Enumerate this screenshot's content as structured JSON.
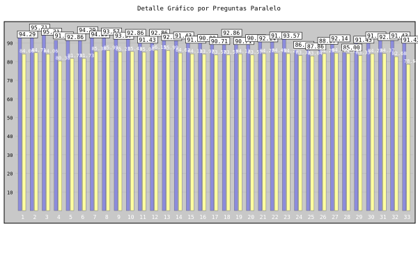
{
  "title": "Detalle Gráfico por Preguntas Paralelo",
  "colors": {
    "plot_bg": "#c8c8c8",
    "series_blue": "#8c8cdc",
    "series_yellow": "#ffffa0",
    "grid": "#bdbdbd",
    "label_box_bg": "#ffffff"
  },
  "chart_data": {
    "type": "bar",
    "title": "Detalle Gráfico por Preguntas Paralelo",
    "xlabel": "",
    "ylabel": "",
    "ylim": [
      0,
      100
    ],
    "yticks": [
      10,
      20,
      30,
      40,
      50,
      60,
      70,
      80,
      90
    ],
    "grid": true,
    "categories": [
      "1",
      "2",
      "3",
      "4",
      "5",
      "6",
      "7",
      "8",
      "9",
      "10",
      "11",
      "12",
      "13",
      "14",
      "15",
      "16",
      "17",
      "18",
      "19",
      "20",
      "21",
      "22",
      "23",
      "24",
      "25",
      "26",
      "27",
      "28",
      "29",
      "30",
      "31",
      "32",
      "33"
    ],
    "series": [
      {
        "color": "#8c8cdc",
        "values": [
          94.29,
          95.71,
          95.71,
          91.43,
          92.86,
          94.29,
          94.29,
          93.57,
          93.57,
          92.86,
          91.43,
          92.86,
          92.86,
          91.43,
          91.43,
          90.0,
          90.71,
          92.86,
          90.71,
          90.0,
          92.14,
          91.43,
          93.57,
          86.43,
          87.86,
          88.57,
          92.14,
          85.0,
          91.43,
          91.43,
          92.86,
          91.43,
          91.43
        ]
      },
      {
        "color": "#ffffa0",
        "values": [
          84.06,
          84.71,
          84.06,
          80.38,
          81.73,
          81.73,
          85.38,
          85.99,
          85.21,
          85.43,
          85.04,
          86.15,
          85.99,
          84.62,
          84.13,
          83.97,
          83.57,
          83.57,
          84.13,
          83.57,
          84.27,
          84.49,
          84.29,
          83.33,
          83.04,
          84.29,
          84.58,
          84.29,
          83.33,
          84.23,
          84.37,
          82.68,
          78.61
        ]
      }
    ]
  }
}
